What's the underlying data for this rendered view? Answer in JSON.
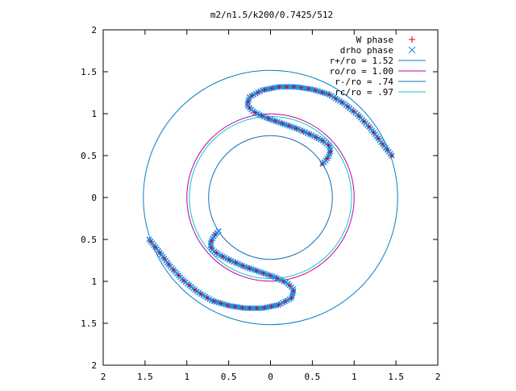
{
  "chart_data": {
    "type": "scatter",
    "title": "m2/n1.5/k200/0.7425/512",
    "xlabel": "",
    "ylabel": "",
    "xlim": [
      -2,
      2
    ],
    "ylim": [
      -2,
      2
    ],
    "grid": false,
    "legend_placement": "top-right",
    "x_tick_labels": [
      "2",
      "1.5",
      "1",
      "0.5",
      "0",
      "0.5",
      "1",
      "1.5",
      "2"
    ],
    "x_tick_values": [
      -2,
      -1.5,
      -1,
      -0.5,
      0,
      0.5,
      1,
      1.5,
      2
    ],
    "y_tick_labels": [
      "2",
      "1.5",
      "1",
      "0.5",
      "0",
      "0.5",
      "1",
      "1.5",
      "2"
    ],
    "y_tick_values": [
      2,
      1.5,
      1,
      0.5,
      0,
      -0.5,
      -1,
      -1.5,
      -2
    ],
    "circles": [
      {
        "name": "r+/ro = 1.52",
        "radius": 1.52,
        "color": "#0b7fc7"
      },
      {
        "name": "ro/ro = 1.00",
        "radius": 1.0,
        "color": "#c000a0"
      },
      {
        "name": "r-/ro = .74",
        "radius": 0.74,
        "color": "#1070b8"
      },
      {
        "name": "rc/ro = .97",
        "radius": 0.97,
        "color": "#10c8c8"
      }
    ],
    "series": [
      {
        "name": "W phase",
        "marker": "+",
        "color": "#e00000"
      },
      {
        "name": "drho phase",
        "marker": "x",
        "color": "#1a8ae8"
      }
    ],
    "curve": {
      "description_points": "polyline through the upper arm of the phase curve; the lower arm is its 180-degree rotation",
      "upper_arm": [
        [
          0.62,
          0.4
        ],
        [
          0.66,
          0.44
        ],
        [
          0.7,
          0.5
        ],
        [
          0.72,
          0.56
        ],
        [
          0.7,
          0.62
        ],
        [
          0.62,
          0.68
        ],
        [
          0.48,
          0.75
        ],
        [
          0.32,
          0.82
        ],
        [
          0.15,
          0.88
        ],
        [
          -0.05,
          0.95
        ],
        [
          -0.2,
          1.02
        ],
        [
          -0.28,
          1.1
        ],
        [
          -0.25,
          1.2
        ],
        [
          -0.1,
          1.28
        ],
        [
          0.1,
          1.32
        ],
        [
          0.3,
          1.32
        ],
        [
          0.5,
          1.29
        ],
        [
          0.7,
          1.23
        ],
        [
          0.88,
          1.12
        ],
        [
          1.05,
          0.98
        ],
        [
          1.2,
          0.82
        ],
        [
          1.33,
          0.65
        ],
        [
          1.45,
          0.5
        ]
      ]
    }
  }
}
